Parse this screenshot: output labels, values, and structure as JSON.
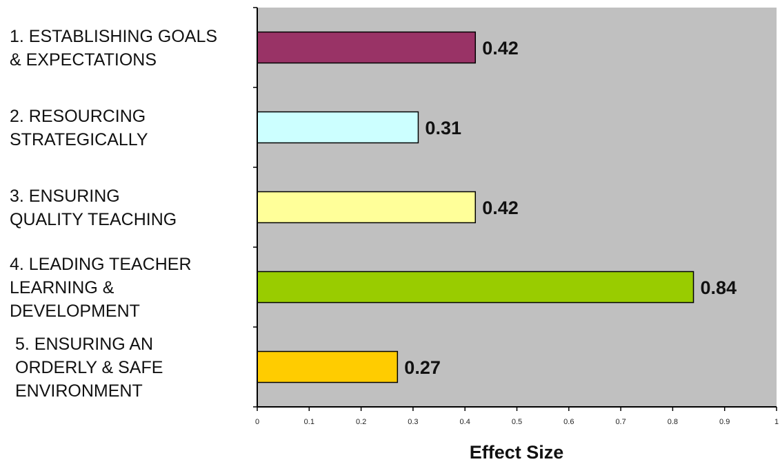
{
  "chart_data": {
    "type": "bar",
    "orientation": "horizontal",
    "categories": [
      [
        "1. ESTABLISHING GOALS",
        "& EXPECTATIONS"
      ],
      [
        "2. RESOURCING",
        "STRATEGICALLY"
      ],
      [
        "3. ENSURING",
        "QUALITY TEACHING"
      ],
      [
        "4. LEADING TEACHER",
        "LEARNING &",
        "DEVELOPMENT"
      ],
      [
        "5. ENSURING AN",
        "ORDERLY & SAFE",
        "ENVIRONMENT"
      ]
    ],
    "values": [
      0.42,
      0.31,
      0.42,
      0.84,
      0.27
    ],
    "value_labels": [
      "0.42",
      "0.31",
      "0.42",
      "0.84",
      "0.27"
    ],
    "bar_colors": [
      "#993366",
      "#ccffff",
      "#ffff99",
      "#99cc00",
      "#ffcc00"
    ],
    "xlabel": "Effect Size",
    "xlim": [
      0,
      1
    ],
    "xticks": [
      "0",
      "0.1",
      "0.2",
      "0.3",
      "0.4",
      "0.5",
      "0.6",
      "0.7",
      "0.8",
      "0.9",
      "1"
    ],
    "plot_background": "#c0c0c0",
    "grid": false,
    "legend": "none"
  }
}
